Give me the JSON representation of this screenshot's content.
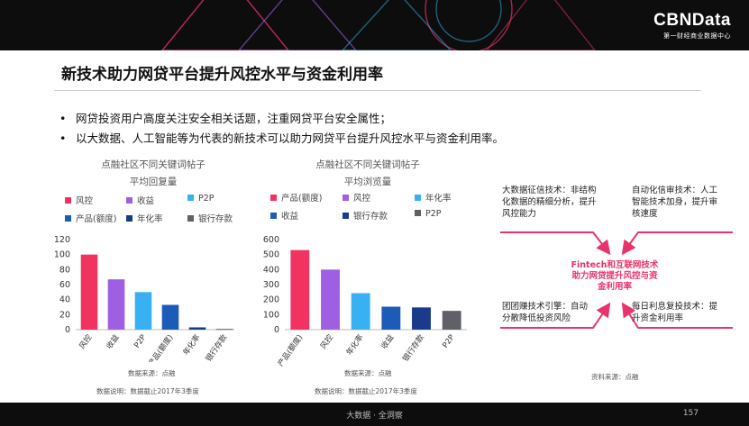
{
  "header": {
    "logo_name": "CBNData",
    "logo_sub": "第一财经商业数据中心"
  },
  "slide": {
    "title": "新技术助力网贷平台提升风控水平与资金利用率",
    "bullets": [
      "网贷投资用户高度关注安全相关话题，注重网贷平台安全属性；",
      "以大数据、人工智能等为代表的新技术可以助力网贷平台提升风控水平与资金利用率。"
    ]
  },
  "chart_data": [
    {
      "type": "bar",
      "title_line1": "点融社区不同关键词帖子",
      "title_line2": "平均回复量",
      "categories": [
        "风控",
        "收益",
        "P2P",
        "产品(额度)",
        "年化率",
        "银行存款"
      ],
      "values": [
        100,
        67,
        50,
        33,
        3,
        1
      ],
      "colors": [
        "#f0335f",
        "#9e5fe3",
        "#37b1f2",
        "#1c5bb8",
        "#1a3a8c",
        "#5f6068"
      ],
      "ylim": [
        0,
        120
      ],
      "yticks": [
        0,
        20,
        40,
        60,
        80,
        100,
        120
      ],
      "legend_position": "top",
      "legend": [
        "风控",
        "收益",
        "P2P",
        "产品(额度)",
        "年化率",
        "银行存款"
      ],
      "source": "数据来源：点融",
      "note": "数据说明：数据截止2017年3季度"
    },
    {
      "type": "bar",
      "title_line1": "点融社区不同关键词帖子",
      "title_line2": "平均浏览量",
      "categories": [
        "产品(额度)",
        "风控",
        "年化率",
        "收益",
        "银行存款",
        "P2P"
      ],
      "values": [
        530,
        400,
        243,
        153,
        148,
        125
      ],
      "colors": [
        "#f0335f",
        "#9e5fe3",
        "#37b1f2",
        "#1c5bb8",
        "#1a3a8c",
        "#5f6068"
      ],
      "ylim": [
        0,
        600
      ],
      "yticks": [
        0,
        100,
        200,
        300,
        400,
        500,
        600
      ],
      "legend_position": "top",
      "legend": [
        "产品(额度)",
        "风控",
        "年化率",
        "收益",
        "银行存款",
        "P2P"
      ],
      "source": "数据来源：点融",
      "note": "数据说明：数据截止2017年3季度"
    }
  ],
  "fintech": {
    "center": "Fintech和互联网技术助力网贷提升风控与资金利用率",
    "top_left": "大数据征信技术：非结构化数据的精细分析，提升风控能力",
    "top_right": "自动化信审技术：人工智能技术加身，提升审核速度",
    "bottom_left": "团团赚技术引擎：自动分散降低投资风险",
    "bottom_right": "每日利息复投技术：提升资金利用率",
    "source": "资料来源：点融",
    "arrow_color": "#e8336b"
  },
  "footer": {
    "center": "大数据 · 全洞察",
    "page": "157"
  }
}
